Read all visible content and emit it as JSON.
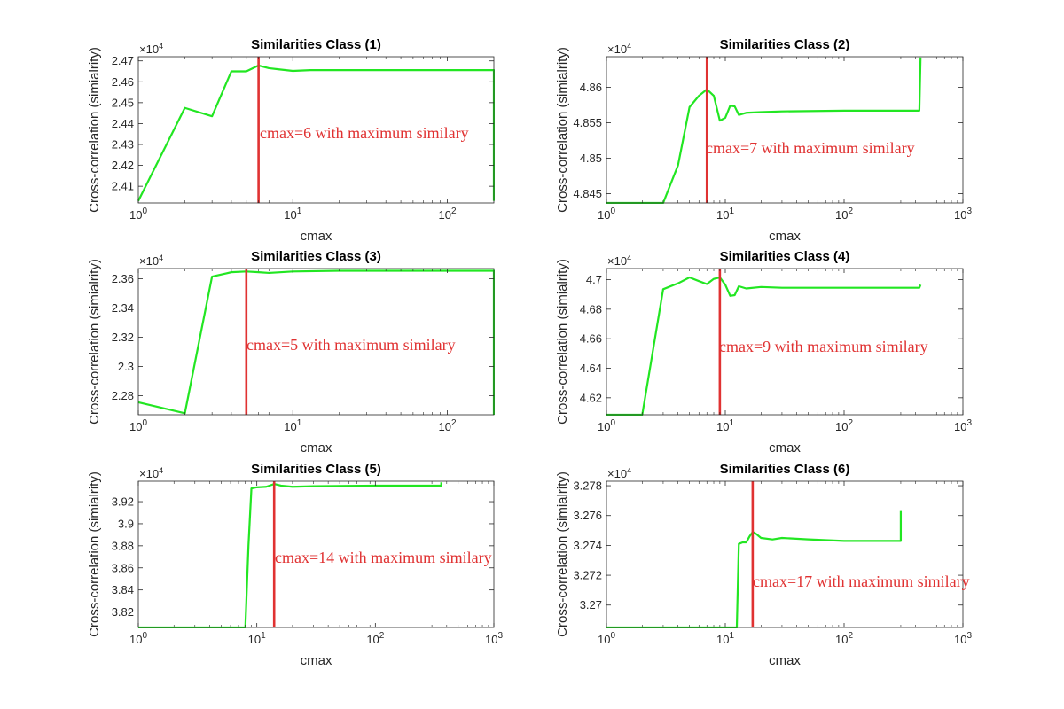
{
  "colors": {
    "series": "#22e622",
    "marker": "#e03232",
    "axis": "#262626"
  },
  "chart_data": [
    {
      "type": "line",
      "title": "Similarities Class (1)",
      "xlabel": "cmax",
      "ylabel": "Cross-correlation (simialrity)",
      "xscale": "log",
      "xlim": [
        1,
        200
      ],
      "ylim": [
        2.402,
        2.472
      ],
      "y_multiplier": "×10^4",
      "xticks": [
        1,
        10,
        100
      ],
      "xtick_labels": [
        [
          "10",
          "0"
        ],
        [
          "10",
          "1"
        ],
        [
          "10",
          "2"
        ]
      ],
      "yticks": [
        2.41,
        2.42,
        2.43,
        2.44,
        2.45,
        2.46,
        2.47
      ],
      "ytick_labels": [
        "2.41",
        "2.42",
        "2.43",
        "2.44",
        "2.45",
        "2.46",
        "2.47"
      ],
      "x": [
        1,
        2,
        3,
        4,
        5,
        6,
        7,
        8,
        10,
        13,
        20,
        50,
        100,
        200,
        200
      ],
      "y": [
        2.403,
        2.4475,
        2.4435,
        2.465,
        2.465,
        2.4678,
        2.4665,
        2.466,
        2.4652,
        2.4656,
        2.4656,
        2.4656,
        2.4656,
        2.4656,
        2.403
      ],
      "marker_x": 6,
      "annotation": "cmax=6 with maximum similary"
    },
    {
      "type": "line",
      "title": "Similarities Class (2)",
      "xlabel": "cmax",
      "ylabel": "Cross-correlation (simialrity)",
      "xscale": "log",
      "xlim": [
        1,
        1000
      ],
      "ylim": [
        4.8437,
        4.8643
      ],
      "y_multiplier": "×10^4",
      "xticks": [
        1,
        10,
        100,
        1000
      ],
      "xtick_labels": [
        [
          "10",
          "0"
        ],
        [
          "10",
          "1"
        ],
        [
          "10",
          "2"
        ],
        [
          "10",
          "3"
        ]
      ],
      "yticks": [
        4.845,
        4.85,
        4.855,
        4.86
      ],
      "ytick_labels": [
        "4.845",
        "4.85",
        "4.855",
        "4.86"
      ],
      "x": [
        1,
        2,
        3,
        4,
        5,
        6,
        7,
        8,
        9,
        10,
        11,
        12,
        13,
        15,
        20,
        30,
        100,
        430,
        440
      ],
      "y": [
        4.8437,
        4.8437,
        4.8437,
        4.849,
        4.8572,
        4.8588,
        4.8597,
        4.8588,
        4.8553,
        4.8557,
        4.8574,
        4.8573,
        4.8561,
        4.8564,
        4.8565,
        4.8566,
        4.8567,
        4.8567,
        4.8642
      ],
      "marker_x": 7,
      "annotation": "cmax=7 with maximum similary"
    },
    {
      "type": "line",
      "title": "Similarities Class (3)",
      "xlabel": "cmax",
      "ylabel": "Cross-correlation (simialrity)",
      "xscale": "log",
      "xlim": [
        1,
        200
      ],
      "ylim": [
        2.267,
        2.367
      ],
      "y_multiplier": "×10^4",
      "xticks": [
        1,
        10,
        100
      ],
      "xtick_labels": [
        [
          "10",
          "0"
        ],
        [
          "10",
          "1"
        ],
        [
          "10",
          "2"
        ]
      ],
      "yticks": [
        2.28,
        2.3,
        2.32,
        2.34,
        2.36
      ],
      "ytick_labels": [
        "2.28",
        "2.3",
        "2.32",
        "2.34",
        "2.36"
      ],
      "x": [
        1,
        2,
        3,
        4,
        5,
        6,
        7,
        10,
        20,
        50,
        100,
        200,
        200
      ],
      "y": [
        2.2755,
        2.268,
        2.3615,
        2.3645,
        2.365,
        2.3645,
        2.364,
        2.365,
        2.3655,
        2.3655,
        2.3655,
        2.3655,
        2.267
      ],
      "marker_x": 5,
      "annotation": "cmax=5 with maximum similary"
    },
    {
      "type": "line",
      "title": "Similarities Class (4)",
      "xlabel": "cmax",
      "ylabel": "Cross-correlation (simialrity)",
      "xscale": "log",
      "xlim": [
        1,
        1000
      ],
      "ylim": [
        4.6085,
        4.7075
      ],
      "y_multiplier": "×10^4",
      "xticks": [
        1,
        10,
        100,
        1000
      ],
      "xtick_labels": [
        [
          "10",
          "0"
        ],
        [
          "10",
          "1"
        ],
        [
          "10",
          "2"
        ],
        [
          "10",
          "3"
        ]
      ],
      "yticks": [
        4.62,
        4.64,
        4.66,
        4.68,
        4.7
      ],
      "ytick_labels": [
        "4.62",
        "4.64",
        "4.66",
        "4.68",
        "4.7"
      ],
      "x": [
        1,
        2,
        3,
        4,
        5,
        6,
        7,
        8,
        9,
        10,
        11,
        12,
        13,
        15,
        20,
        30,
        100,
        430,
        440
      ],
      "y": [
        4.6085,
        4.6085,
        4.6935,
        4.6975,
        4.7015,
        4.699,
        4.697,
        4.7005,
        4.7015,
        4.6965,
        4.689,
        4.6895,
        4.6955,
        4.694,
        4.695,
        4.6945,
        4.6945,
        4.6945,
        4.6965
      ],
      "marker_x": 9,
      "annotation": "cmax=9 with maximum similary"
    },
    {
      "type": "line",
      "title": "Similarities Class (5)",
      "xlabel": "cmax",
      "ylabel": "Cross-correlation (simialrity)",
      "xscale": "log",
      "xlim": [
        1,
        1000
      ],
      "ylim": [
        3.806,
        3.9385
      ],
      "y_multiplier": "×10^4",
      "xticks": [
        1,
        10,
        100,
        1000
      ],
      "xtick_labels": [
        [
          "10",
          "0"
        ],
        [
          "10",
          "1"
        ],
        [
          "10",
          "2"
        ],
        [
          "10",
          "3"
        ]
      ],
      "yticks": [
        3.82,
        3.84,
        3.86,
        3.88,
        3.9,
        3.92
      ],
      "ytick_labels": [
        "3.82",
        "3.84",
        "3.86",
        "3.88",
        "3.9",
        "3.92"
      ],
      "x": [
        1,
        5,
        8,
        8.5,
        9,
        10,
        12,
        14,
        16,
        20,
        30,
        100,
        360,
        360
      ],
      "y": [
        3.806,
        3.806,
        3.806,
        3.88,
        3.932,
        3.933,
        3.9335,
        3.936,
        3.9345,
        3.9335,
        3.934,
        3.9345,
        3.9345,
        3.9375
      ],
      "marker_x": 14,
      "annotation": "cmax=14 with maximum similary"
    },
    {
      "type": "line",
      "title": "Similarities Class (6)",
      "xlabel": "cmax",
      "ylabel": "Cross-correlation (simialrity)",
      "xscale": "log",
      "xlim": [
        1,
        1000
      ],
      "ylim": [
        3.2685,
        3.2783
      ],
      "y_multiplier": "×10^4",
      "xticks": [
        1,
        10,
        100,
        1000
      ],
      "xtick_labels": [
        [
          "10",
          "0"
        ],
        [
          "10",
          "1"
        ],
        [
          "10",
          "2"
        ],
        [
          "10",
          "3"
        ]
      ],
      "yticks": [
        3.27,
        3.272,
        3.274,
        3.276,
        3.278
      ],
      "ytick_labels": [
        "3.27",
        "3.272",
        "3.274",
        "3.276",
        "3.278"
      ],
      "x": [
        1,
        5,
        10,
        12.5,
        13,
        14,
        15,
        16,
        17,
        18,
        20,
        25,
        30,
        50,
        100,
        300,
        300
      ],
      "y": [
        3.2685,
        3.2685,
        3.2685,
        3.2685,
        3.2741,
        3.2742,
        3.2742,
        3.2746,
        3.2749,
        3.2748,
        3.2745,
        3.2744,
        3.2745,
        3.2744,
        3.2743,
        3.2743,
        3.2763
      ],
      "marker_x": 17,
      "annotation": "cmax=17 with maximum similary"
    }
  ]
}
